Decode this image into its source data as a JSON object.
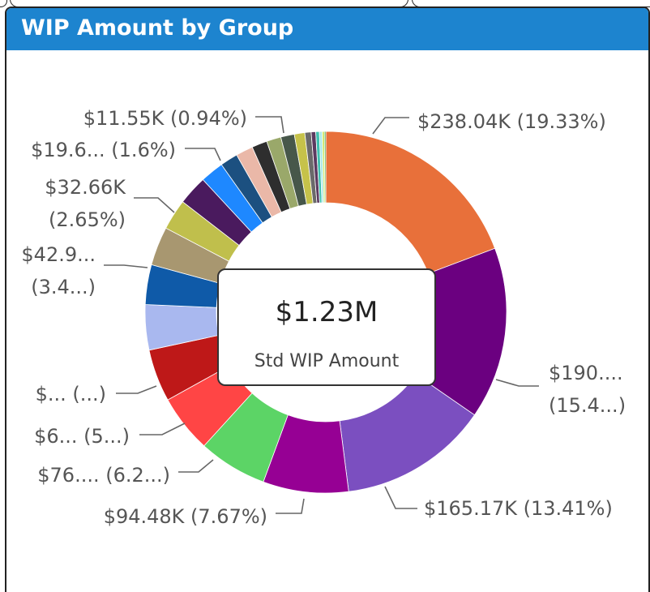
{
  "visual": {
    "title": "WIP Amount by Group"
  },
  "tooltip": {
    "value": "$1.23M",
    "label": "Std WIP Amount"
  },
  "chart_data": {
    "type": "pie",
    "variant": "donut",
    "title": "WIP Amount by Group",
    "center_value": "$1.23M",
    "center_label": "Std WIP Amount",
    "slices": [
      {
        "value": 238.04,
        "percent": 19.33,
        "color": "#e8703a",
        "label_lines": [
          "$238.04K (19.33%)"
        ]
      },
      {
        "value": 190.0,
        "percent": 15.43,
        "color": "#6b0080",
        "label_lines": [
          "$190....",
          "(15.4...)"
        ]
      },
      {
        "value": 165.17,
        "percent": 13.41,
        "color": "#7b4fc0",
        "label_lines": [
          "$165.17K (13.41%)"
        ]
      },
      {
        "value": 94.48,
        "percent": 7.67,
        "color": "#960094",
        "label_lines": [
          "$94.48K (7.67%)"
        ]
      },
      {
        "value": 76.0,
        "percent": 6.2,
        "color": "#5cd466",
        "label_lines": [
          "$76.... (6.2...)"
        ]
      },
      {
        "value": 64.0,
        "percent": 5.2,
        "color": "#ff4545",
        "label_lines": [
          "$6... (5...)"
        ]
      },
      {
        "value": 58.0,
        "percent": 4.7,
        "color": "#be1818",
        "label_lines": [
          "$... (...)"
        ]
      },
      {
        "value": 50.0,
        "percent": 4.1,
        "color": "#a9b8ef",
        "label_lines": []
      },
      {
        "value": 44.0,
        "percent": 3.6,
        "color": "#0f5aa8",
        "label_lines": []
      },
      {
        "value": 42.9,
        "percent": 3.48,
        "color": "#a89770",
        "label_lines": [
          "$42.9...",
          "(3.4...)"
        ]
      },
      {
        "value": 34.0,
        "percent": 2.76,
        "color": "#c0bf4c",
        "label_lines": []
      },
      {
        "value": 32.66,
        "percent": 2.65,
        "color": "#4a1a5e",
        "label_lines": [
          "$32.66K",
          "(2.65%)"
        ]
      },
      {
        "value": 26.0,
        "percent": 2.11,
        "color": "#1e88ff",
        "label_lines": []
      },
      {
        "value": 19.6,
        "percent": 1.6,
        "color": "#1c5080",
        "label_lines": [
          "$19.6... (1.6%)"
        ]
      },
      {
        "value": 19.0,
        "percent": 1.54,
        "color": "#eab8a8",
        "label_lines": []
      },
      {
        "value": 17.0,
        "percent": 1.38,
        "color": "#2e2e2e",
        "label_lines": []
      },
      {
        "value": 16.0,
        "percent": 1.3,
        "color": "#9aa86a",
        "label_lines": []
      },
      {
        "value": 15.0,
        "percent": 1.22,
        "color": "#47574a",
        "label_lines": []
      },
      {
        "value": 11.55,
        "percent": 0.94,
        "color": "#c6c24a",
        "label_lines": [
          "$11.55K (0.94%)"
        ]
      },
      {
        "value": 7.0,
        "percent": 0.57,
        "color": "#6a6a6a",
        "label_lines": []
      },
      {
        "value": 5.0,
        "percent": 0.41,
        "color": "#5c3a60",
        "label_lines": []
      },
      {
        "value": 4.0,
        "percent": 0.32,
        "color": "#3ec0b0",
        "label_lines": []
      },
      {
        "value": 3.0,
        "percent": 0.24,
        "color": "#a8e8e8",
        "label_lines": []
      },
      {
        "value": 2.5,
        "percent": 0.2,
        "color": "#cfe86a",
        "label_lines": []
      },
      {
        "value": 1.5,
        "percent": 0.12,
        "color": "#3a9c3a",
        "label_lines": []
      }
    ]
  }
}
